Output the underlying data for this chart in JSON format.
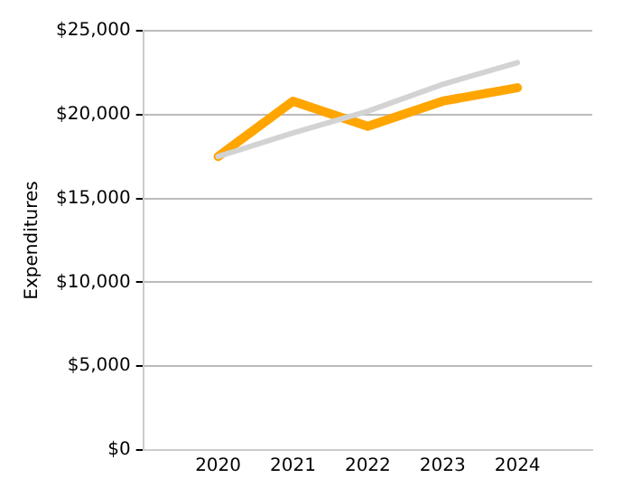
{
  "chart_data": {
    "type": "line",
    "ylabel": "Expenditures",
    "x": [
      2020,
      2021,
      2022,
      2023,
      2024
    ],
    "xlim": [
      2019,
      2025
    ],
    "xticks": [
      2020,
      2021,
      2022,
      2023,
      2024
    ],
    "ylim": [
      0,
      25000
    ],
    "yticks": [
      {
        "value": 0,
        "label": "$0"
      },
      {
        "value": 5000,
        "label": "$5,000"
      },
      {
        "value": 10000,
        "label": "$10,000"
      },
      {
        "value": 15000,
        "label": "$15,000"
      },
      {
        "value": 20000,
        "label": "$20,000"
      },
      {
        "value": 25000,
        "label": "$25,000"
      }
    ],
    "grid": "y",
    "legend": false,
    "marker": "none",
    "line_style": "solid",
    "series": [
      {
        "color": "#d3d3d3",
        "values": [
          17500,
          18900,
          20200,
          21800,
          23100
        ]
      },
      {
        "color": "#ffa500",
        "values": [
          17500,
          20800,
          19300,
          20800,
          21600
        ]
      }
    ]
  }
}
